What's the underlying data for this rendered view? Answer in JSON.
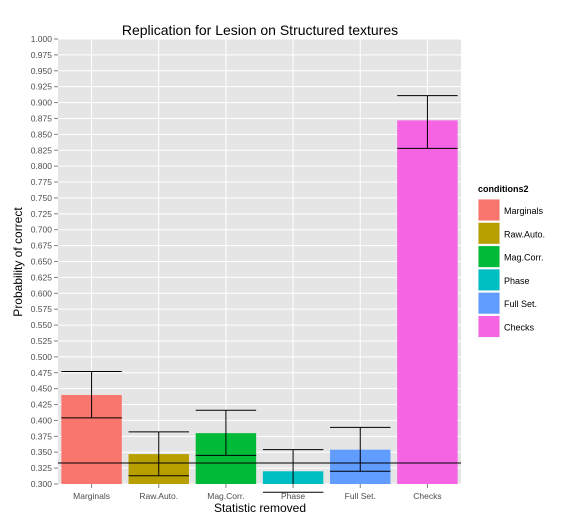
{
  "chart_data": {
    "type": "bar",
    "title": "Replication for Lesion on Structured textures",
    "xlabel": "Statistic removed",
    "ylabel": "Probability of correct",
    "ylim": [
      0.3,
      1.0
    ],
    "y_tick_step": 0.025,
    "categories": [
      "Marginals",
      "Raw.Auto.",
      "Mag.Corr.",
      "Phase",
      "Full Set.",
      "Checks"
    ],
    "values": [
      0.44,
      0.347,
      0.38,
      0.32,
      0.354,
      0.872
    ],
    "error_low": [
      0.404,
      0.313,
      0.345,
      0.287,
      0.32,
      0.828
    ],
    "error_high": [
      0.477,
      0.382,
      0.416,
      0.354,
      0.389,
      0.911
    ],
    "reference_line": 0.333,
    "grid": true,
    "legend": {
      "title": "conditions2",
      "position": "right",
      "entries": [
        "Marginals",
        "Raw.Auto.",
        "Mag.Corr.",
        "Phase",
        "Full Set.",
        "Checks"
      ]
    },
    "colors": [
      "#f8766d",
      "#b79f00",
      "#00ba38",
      "#00bfc4",
      "#619cff",
      "#f564e3"
    ]
  }
}
